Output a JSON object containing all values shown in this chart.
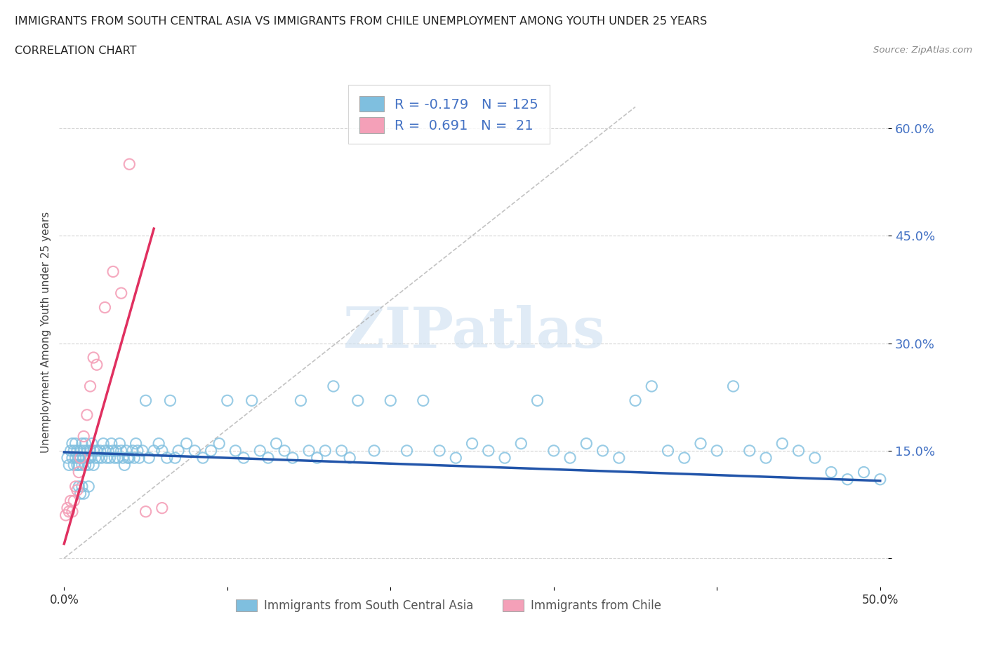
{
  "title_line1": "IMMIGRANTS FROM SOUTH CENTRAL ASIA VS IMMIGRANTS FROM CHILE UNEMPLOYMENT AMONG YOUTH UNDER 25 YEARS",
  "title_line2": "CORRELATION CHART",
  "source": "Source: ZipAtlas.com",
  "ylabel": "Unemployment Among Youth under 25 years",
  "xlim": [
    -0.003,
    0.505
  ],
  "ylim": [
    -0.04,
    0.67
  ],
  "yticks": [
    0.0,
    0.15,
    0.3,
    0.45,
    0.6
  ],
  "ytick_labels": [
    "",
    "15.0%",
    "30.0%",
    "45.0%",
    "60.0%"
  ],
  "xticks": [
    0.0,
    0.1,
    0.2,
    0.3,
    0.4,
    0.5
  ],
  "xtick_labels": [
    "0.0%",
    "",
    "",
    "",
    "",
    "50.0%"
  ],
  "blue_color": "#7fbfdf",
  "pink_color": "#f4a0b8",
  "blue_line_color": "#2255aa",
  "pink_line_color": "#e03060",
  "blue_R": -0.179,
  "blue_N": 125,
  "pink_R": 0.691,
  "pink_N": 21,
  "legend_label_blue": "Immigrants from South Central Asia",
  "legend_label_pink": "Immigrants from Chile",
  "watermark": "ZIPatlas",
  "background_color": "#ffffff",
  "grid_color": "#c8c8c8",
  "blue_trend_x": [
    0.0,
    0.5
  ],
  "blue_trend_y": [
    0.148,
    0.108
  ],
  "pink_trend_x": [
    0.0,
    0.055
  ],
  "pink_trend_y": [
    0.02,
    0.46
  ],
  "gray_line_x": [
    0.0,
    0.35
  ],
  "gray_line_y": [
    0.0,
    0.63
  ],
  "blue_scatter_x": [
    0.002,
    0.003,
    0.004,
    0.005,
    0.005,
    0.006,
    0.006,
    0.007,
    0.007,
    0.008,
    0.008,
    0.009,
    0.009,
    0.01,
    0.01,
    0.011,
    0.011,
    0.012,
    0.012,
    0.013,
    0.013,
    0.014,
    0.015,
    0.015,
    0.016,
    0.016,
    0.017,
    0.018,
    0.018,
    0.019,
    0.02,
    0.021,
    0.022,
    0.023,
    0.024,
    0.025,
    0.026,
    0.027,
    0.028,
    0.029,
    0.03,
    0.031,
    0.032,
    0.033,
    0.034,
    0.035,
    0.036,
    0.037,
    0.038,
    0.039,
    0.04,
    0.042,
    0.043,
    0.044,
    0.045,
    0.046,
    0.048,
    0.05,
    0.052,
    0.055,
    0.058,
    0.06,
    0.063,
    0.065,
    0.068,
    0.07,
    0.075,
    0.08,
    0.085,
    0.09,
    0.095,
    0.1,
    0.105,
    0.11,
    0.115,
    0.12,
    0.125,
    0.13,
    0.135,
    0.14,
    0.145,
    0.15,
    0.155,
    0.16,
    0.165,
    0.17,
    0.175,
    0.18,
    0.19,
    0.2,
    0.21,
    0.22,
    0.23,
    0.24,
    0.25,
    0.26,
    0.27,
    0.28,
    0.29,
    0.3,
    0.31,
    0.32,
    0.33,
    0.34,
    0.35,
    0.36,
    0.37,
    0.38,
    0.39,
    0.4,
    0.41,
    0.42,
    0.43,
    0.44,
    0.45,
    0.46,
    0.47,
    0.48,
    0.49,
    0.5,
    0.009,
    0.01,
    0.011,
    0.012,
    0.015
  ],
  "blue_scatter_y": [
    0.14,
    0.13,
    0.15,
    0.14,
    0.16,
    0.13,
    0.15,
    0.14,
    0.16,
    0.13,
    0.15,
    0.14,
    0.13,
    0.15,
    0.14,
    0.16,
    0.13,
    0.15,
    0.14,
    0.16,
    0.13,
    0.15,
    0.14,
    0.13,
    0.15,
    0.14,
    0.16,
    0.13,
    0.15,
    0.14,
    0.15,
    0.14,
    0.15,
    0.14,
    0.16,
    0.15,
    0.14,
    0.15,
    0.14,
    0.16,
    0.15,
    0.14,
    0.15,
    0.14,
    0.16,
    0.15,
    0.14,
    0.13,
    0.15,
    0.14,
    0.14,
    0.15,
    0.14,
    0.16,
    0.15,
    0.14,
    0.15,
    0.22,
    0.14,
    0.15,
    0.16,
    0.15,
    0.14,
    0.22,
    0.14,
    0.15,
    0.16,
    0.15,
    0.14,
    0.15,
    0.16,
    0.22,
    0.15,
    0.14,
    0.22,
    0.15,
    0.14,
    0.16,
    0.15,
    0.14,
    0.22,
    0.15,
    0.14,
    0.15,
    0.24,
    0.15,
    0.14,
    0.22,
    0.15,
    0.22,
    0.15,
    0.22,
    0.15,
    0.14,
    0.16,
    0.15,
    0.14,
    0.16,
    0.22,
    0.15,
    0.14,
    0.16,
    0.15,
    0.14,
    0.22,
    0.24,
    0.15,
    0.14,
    0.16,
    0.15,
    0.24,
    0.15,
    0.14,
    0.16,
    0.15,
    0.14,
    0.12,
    0.11,
    0.12,
    0.11,
    0.1,
    0.09,
    0.1,
    0.09,
    0.1
  ],
  "pink_scatter_x": [
    0.001,
    0.002,
    0.003,
    0.004,
    0.005,
    0.006,
    0.007,
    0.008,
    0.009,
    0.01,
    0.012,
    0.014,
    0.016,
    0.018,
    0.02,
    0.025,
    0.03,
    0.035,
    0.04,
    0.05,
    0.06
  ],
  "pink_scatter_y": [
    0.06,
    0.07,
    0.065,
    0.08,
    0.065,
    0.08,
    0.1,
    0.095,
    0.12,
    0.14,
    0.17,
    0.2,
    0.24,
    0.28,
    0.27,
    0.35,
    0.4,
    0.37,
    0.55,
    0.065,
    0.07
  ]
}
